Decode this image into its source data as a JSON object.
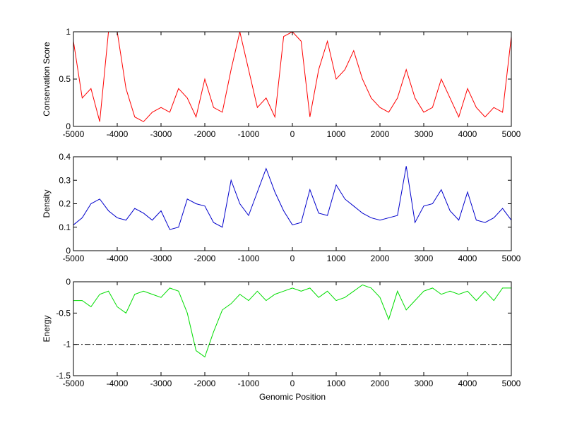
{
  "chart_data": [
    {
      "type": "line",
      "ylabel": "Conservation Score",
      "x": [
        -5000,
        -4800,
        -4600,
        -4400,
        -4200,
        -4000,
        -3800,
        -3600,
        -3400,
        -3200,
        -3000,
        -2800,
        -2600,
        -2400,
        -2200,
        -2000,
        -1800,
        -1600,
        -1400,
        -1200,
        -1000,
        -800,
        -600,
        -400,
        -200,
        0,
        200,
        400,
        600,
        800,
        1000,
        1200,
        1400,
        1600,
        1800,
        2000,
        2200,
        2400,
        2600,
        2800,
        3000,
        3200,
        3400,
        3600,
        3800,
        4000,
        4200,
        4400,
        4600,
        4800,
        5000
      ],
      "series": [
        {
          "color": "#ff0000",
          "values": [
            0.9,
            0.3,
            0.4,
            0.05,
            1,
            1,
            0.4,
            0.1,
            0.05,
            0.15,
            0.2,
            0.15,
            0.4,
            0.3,
            0.1,
            0.5,
            0.2,
            0.15,
            0.6,
            1,
            0.6,
            0.2,
            0.3,
            0.1,
            0.95,
            1,
            0.9,
            0.1,
            0.6,
            0.9,
            0.5,
            0.6,
            0.8,
            0.5,
            0.3,
            0.2,
            0.15,
            0.3,
            0.6,
            0.3,
            0.15,
            0.2,
            0.5,
            0.3,
            0.1,
            0.4,
            0.2,
            0.1,
            0.2,
            0.15,
            0.95
          ]
        }
      ],
      "xlim": [
        -5000,
        5000
      ],
      "xticks": [
        -5000,
        -4000,
        -3000,
        -2000,
        -1000,
        0,
        1000,
        2000,
        3000,
        4000,
        5000
      ],
      "ylim": [
        0,
        1
      ],
      "yticks": [
        0,
        0.5,
        1
      ]
    },
    {
      "type": "line",
      "ylabel": "Density",
      "x": [
        -5000,
        -4800,
        -4600,
        -4400,
        -4200,
        -4000,
        -3800,
        -3600,
        -3400,
        -3200,
        -3000,
        -2800,
        -2600,
        -2400,
        -2200,
        -2000,
        -1800,
        -1600,
        -1400,
        -1200,
        -1000,
        -800,
        -600,
        -400,
        -200,
        0,
        200,
        400,
        600,
        800,
        1000,
        1200,
        1400,
        1600,
        1800,
        2000,
        2200,
        2400,
        2600,
        2800,
        3000,
        3200,
        3400,
        3600,
        3800,
        4000,
        4200,
        4400,
        4600,
        4800,
        5000
      ],
      "series": [
        {
          "color": "#0000cc",
          "values": [
            0.11,
            0.14,
            0.2,
            0.22,
            0.17,
            0.14,
            0.13,
            0.18,
            0.16,
            0.13,
            0.17,
            0.09,
            0.1,
            0.22,
            0.2,
            0.19,
            0.12,
            0.1,
            0.3,
            0.2,
            0.15,
            0.25,
            0.35,
            0.25,
            0.17,
            0.11,
            0.12,
            0.26,
            0.16,
            0.15,
            0.28,
            0.22,
            0.19,
            0.16,
            0.14,
            0.13,
            0.14,
            0.15,
            0.36,
            0.12,
            0.19,
            0.2,
            0.26,
            0.17,
            0.13,
            0.25,
            0.13,
            0.12,
            0.14,
            0.18,
            0.13
          ]
        }
      ],
      "xlim": [
        -5000,
        5000
      ],
      "xticks": [
        -5000,
        -4000,
        -3000,
        -2000,
        -1000,
        0,
        1000,
        2000,
        3000,
        4000,
        5000
      ],
      "ylim": [
        0,
        0.4
      ],
      "yticks": [
        0,
        0.1,
        0.2,
        0.3,
        0.4
      ]
    },
    {
      "type": "line",
      "ylabel": "Energy",
      "xlabel": "Genomic Position",
      "x": [
        -5000,
        -4800,
        -4600,
        -4400,
        -4200,
        -4000,
        -3800,
        -3600,
        -3400,
        -3200,
        -3000,
        -2800,
        -2600,
        -2400,
        -2200,
        -2000,
        -1800,
        -1600,
        -1400,
        -1200,
        -1000,
        -800,
        -600,
        -400,
        -200,
        0,
        200,
        400,
        600,
        800,
        1000,
        1200,
        1400,
        1600,
        1800,
        2000,
        2200,
        2400,
        2600,
        2800,
        3000,
        3200,
        3400,
        3600,
        3800,
        4000,
        4200,
        4400,
        4600,
        4800,
        5000
      ],
      "series": [
        {
          "color": "#00dd00",
          "values": [
            -0.3,
            -0.3,
            -0.4,
            -0.2,
            -0.15,
            -0.4,
            -0.5,
            -0.2,
            -0.15,
            -0.2,
            -0.25,
            -0.1,
            -0.15,
            -0.5,
            -1.1,
            -1.2,
            -0.8,
            -0.45,
            -0.35,
            -0.2,
            -0.3,
            -0.15,
            -0.3,
            -0.2,
            -0.15,
            -0.1,
            -0.15,
            -0.1,
            -0.25,
            -0.15,
            -0.3,
            -0.25,
            -0.15,
            -0.05,
            -0.1,
            -0.25,
            -0.6,
            -0.15,
            -0.45,
            -0.3,
            -0.15,
            -0.1,
            -0.2,
            -0.15,
            -0.2,
            -0.15,
            -0.3,
            -0.15,
            -0.3,
            -0.1,
            -0.1
          ]
        }
      ],
      "reference_line": -1,
      "xlim": [
        -5000,
        5000
      ],
      "xticks": [
        -5000,
        -4000,
        -3000,
        -2000,
        -1000,
        0,
        1000,
        2000,
        3000,
        4000,
        5000
      ],
      "ylim": [
        -1.5,
        0
      ],
      "yticks": [
        -1.5,
        -1,
        -0.5,
        0
      ]
    }
  ]
}
